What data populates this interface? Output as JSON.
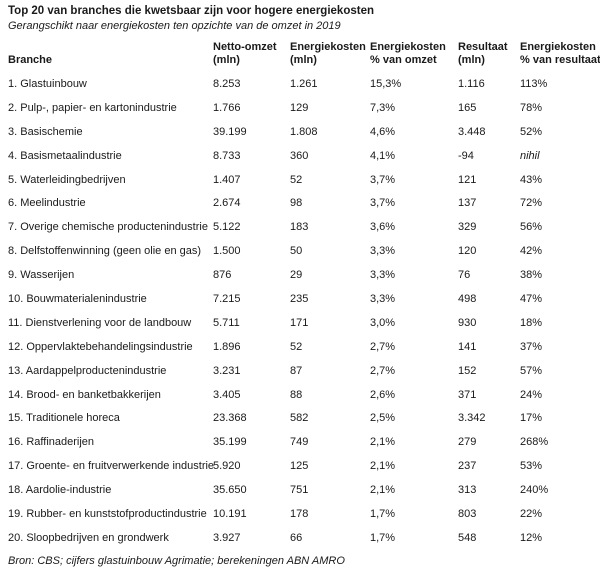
{
  "chart_data": {
    "type": "table",
    "title": "Top 20 van branches die kwetsbaar zijn voor hogere energiekosten",
    "subtitle": "Gerangschikt naar energiekosten ten opzichte van de omzet in 2019",
    "source": "Bron: CBS; cijfers glastuinbouw Agrimatie; berekeningen ABN AMRO",
    "columns": [
      "Branche",
      "Netto-omzet (mln)",
      "Energiekosten (mln)",
      "Energiekosten % van omzet",
      "Resultaat (mln)",
      "Energiekosten % van resultaat"
    ],
    "header_lines": [
      [
        "",
        "Branche"
      ],
      [
        "Netto-omzet",
        "(mln)"
      ],
      [
        "Energiekosten",
        "(mln)"
      ],
      [
        "Energiekosten",
        "% van omzet"
      ],
      [
        "Resultaat",
        "(mln)"
      ],
      [
        "Energiekosten",
        "% van resultaat"
      ]
    ],
    "rows": [
      [
        "1. Glastuinbouw",
        "8.253",
        "1.261",
        "15,3%",
        "1.116",
        "113%"
      ],
      [
        "2. Pulp-, papier- en kartonindustrie",
        "1.766",
        "129",
        "7,3%",
        "165",
        "78%"
      ],
      [
        "3. Basischemie",
        "39.199",
        "1.808",
        "4,6%",
        "3.448",
        "52%"
      ],
      [
        "4. Basismetaalindustrie",
        "8.733",
        "360",
        "4,1%",
        "-94",
        "nihil"
      ],
      [
        "5. Waterleidingbedrijven",
        "1.407",
        "52",
        "3,7%",
        "121",
        "43%"
      ],
      [
        "6. Meelindustrie",
        "2.674",
        "98",
        "3,7%",
        "137",
        "72%"
      ],
      [
        "7. Overige chemische productenindustrie",
        "5.122",
        "183",
        "3,6%",
        "329",
        "56%"
      ],
      [
        "8. Delfstoffenwinning (geen olie en gas)",
        "1.500",
        "50",
        "3,3%",
        "120",
        "42%"
      ],
      [
        "9. Wasserijen",
        "876",
        "29",
        "3,3%",
        "76",
        "38%"
      ],
      [
        "10. Bouwmaterialenindustrie",
        "7.215",
        "235",
        "3,3%",
        "498",
        "47%"
      ],
      [
        "11. Dienstverlening voor de landbouw",
        "5.711",
        "171",
        "3,0%",
        "930",
        "18%"
      ],
      [
        "12. Oppervlaktebehandelingsindustrie",
        "1.896",
        "52",
        "2,7%",
        "141",
        "37%"
      ],
      [
        "13. Aardappelproductenindustrie",
        "3.231",
        "87",
        "2,7%",
        "152",
        "57%"
      ],
      [
        "14. Brood- en banketbakkerijen",
        "3.405",
        "88",
        "2,6%",
        "371",
        "24%"
      ],
      [
        "15. Traditionele horeca",
        "23.368",
        "582",
        "2,5%",
        "3.342",
        "17%"
      ],
      [
        "16. Raffinaderijen",
        "35.199",
        "749",
        "2,1%",
        "279",
        "268%"
      ],
      [
        "17. Groente- en fruitverwerkende industrie",
        "5.920",
        "125",
        "2,1%",
        "237",
        "53%"
      ],
      [
        "18. Aardolie-industrie",
        "35.650",
        "751",
        "2,1%",
        "313",
        "240%"
      ],
      [
        "19. Rubber- en kunststofproductindustrie",
        "10.191",
        "178",
        "1,7%",
        "803",
        "22%"
      ],
      [
        "20. Sloopbedrijven en grondwerk",
        "3.927",
        "66",
        "1,7%",
        "548",
        "12%"
      ]
    ],
    "italic_values": [
      "nihil"
    ],
    "text_color": "#1a1a1a",
    "background_color": "#ffffff",
    "grid": "off",
    "legend": "none"
  }
}
